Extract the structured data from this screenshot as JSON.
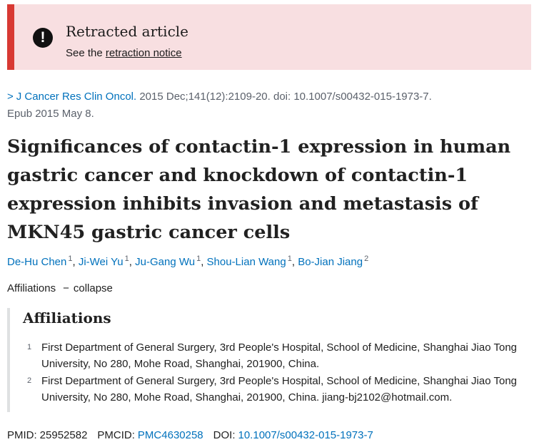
{
  "banner": {
    "icon": "exclamation-icon",
    "title": "Retracted article",
    "text_prefix": "See the ",
    "link": "retraction notice",
    "accent": "#d83933",
    "background": "#f8dfe1"
  },
  "citation": {
    "chevron": ">",
    "journal": "J Cancer Res Clin Oncol.",
    "details": " 2015 Dec;141(12):2109-20. doi: 10.1007/s00432-015-1973-7.",
    "epub": "Epub 2015 May 8."
  },
  "article": {
    "title": "Significances of contactin-1 expression in human gastric cancer and knockdown of contactin-1 expression inhibits invasion and metastasis of MKN45 gastric cancer cells"
  },
  "authors": [
    {
      "name": "De-Hu Chen",
      "aff": "1"
    },
    {
      "name": "Ji-Wei Yu",
      "aff": "1"
    },
    {
      "name": "Ju-Gang Wu",
      "aff": "1"
    },
    {
      "name": "Shou-Lian Wang",
      "aff": "1"
    },
    {
      "name": "Bo-Jian Jiang",
      "aff": "2"
    }
  ],
  "affiliations_toggle": {
    "label": "Affiliations",
    "dash": "−",
    "action": "collapse"
  },
  "affiliations": {
    "heading": "Affiliations",
    "items": [
      {
        "num": "1",
        "text": "First Department of General Surgery, 3rd People's Hospital, School of Medicine, Shanghai Jiao Tong University, No 280, Mohe Road, Shanghai, 201900, China."
      },
      {
        "num": "2",
        "text": "First Department of General Surgery, 3rd People's Hospital, School of Medicine, Shanghai Jiao Tong University, No 280, Mohe Road, Shanghai, 201900, China. jiang-bj2102@hotmail.com."
      }
    ]
  },
  "identifiers": {
    "pmid_label": "PMID:",
    "pmid": "25952582",
    "pmcid_label": "PMCID:",
    "pmcid": "PMC4630258",
    "doi_label": "DOI:",
    "doi": "10.1007/s00432-015-1973-7"
  }
}
